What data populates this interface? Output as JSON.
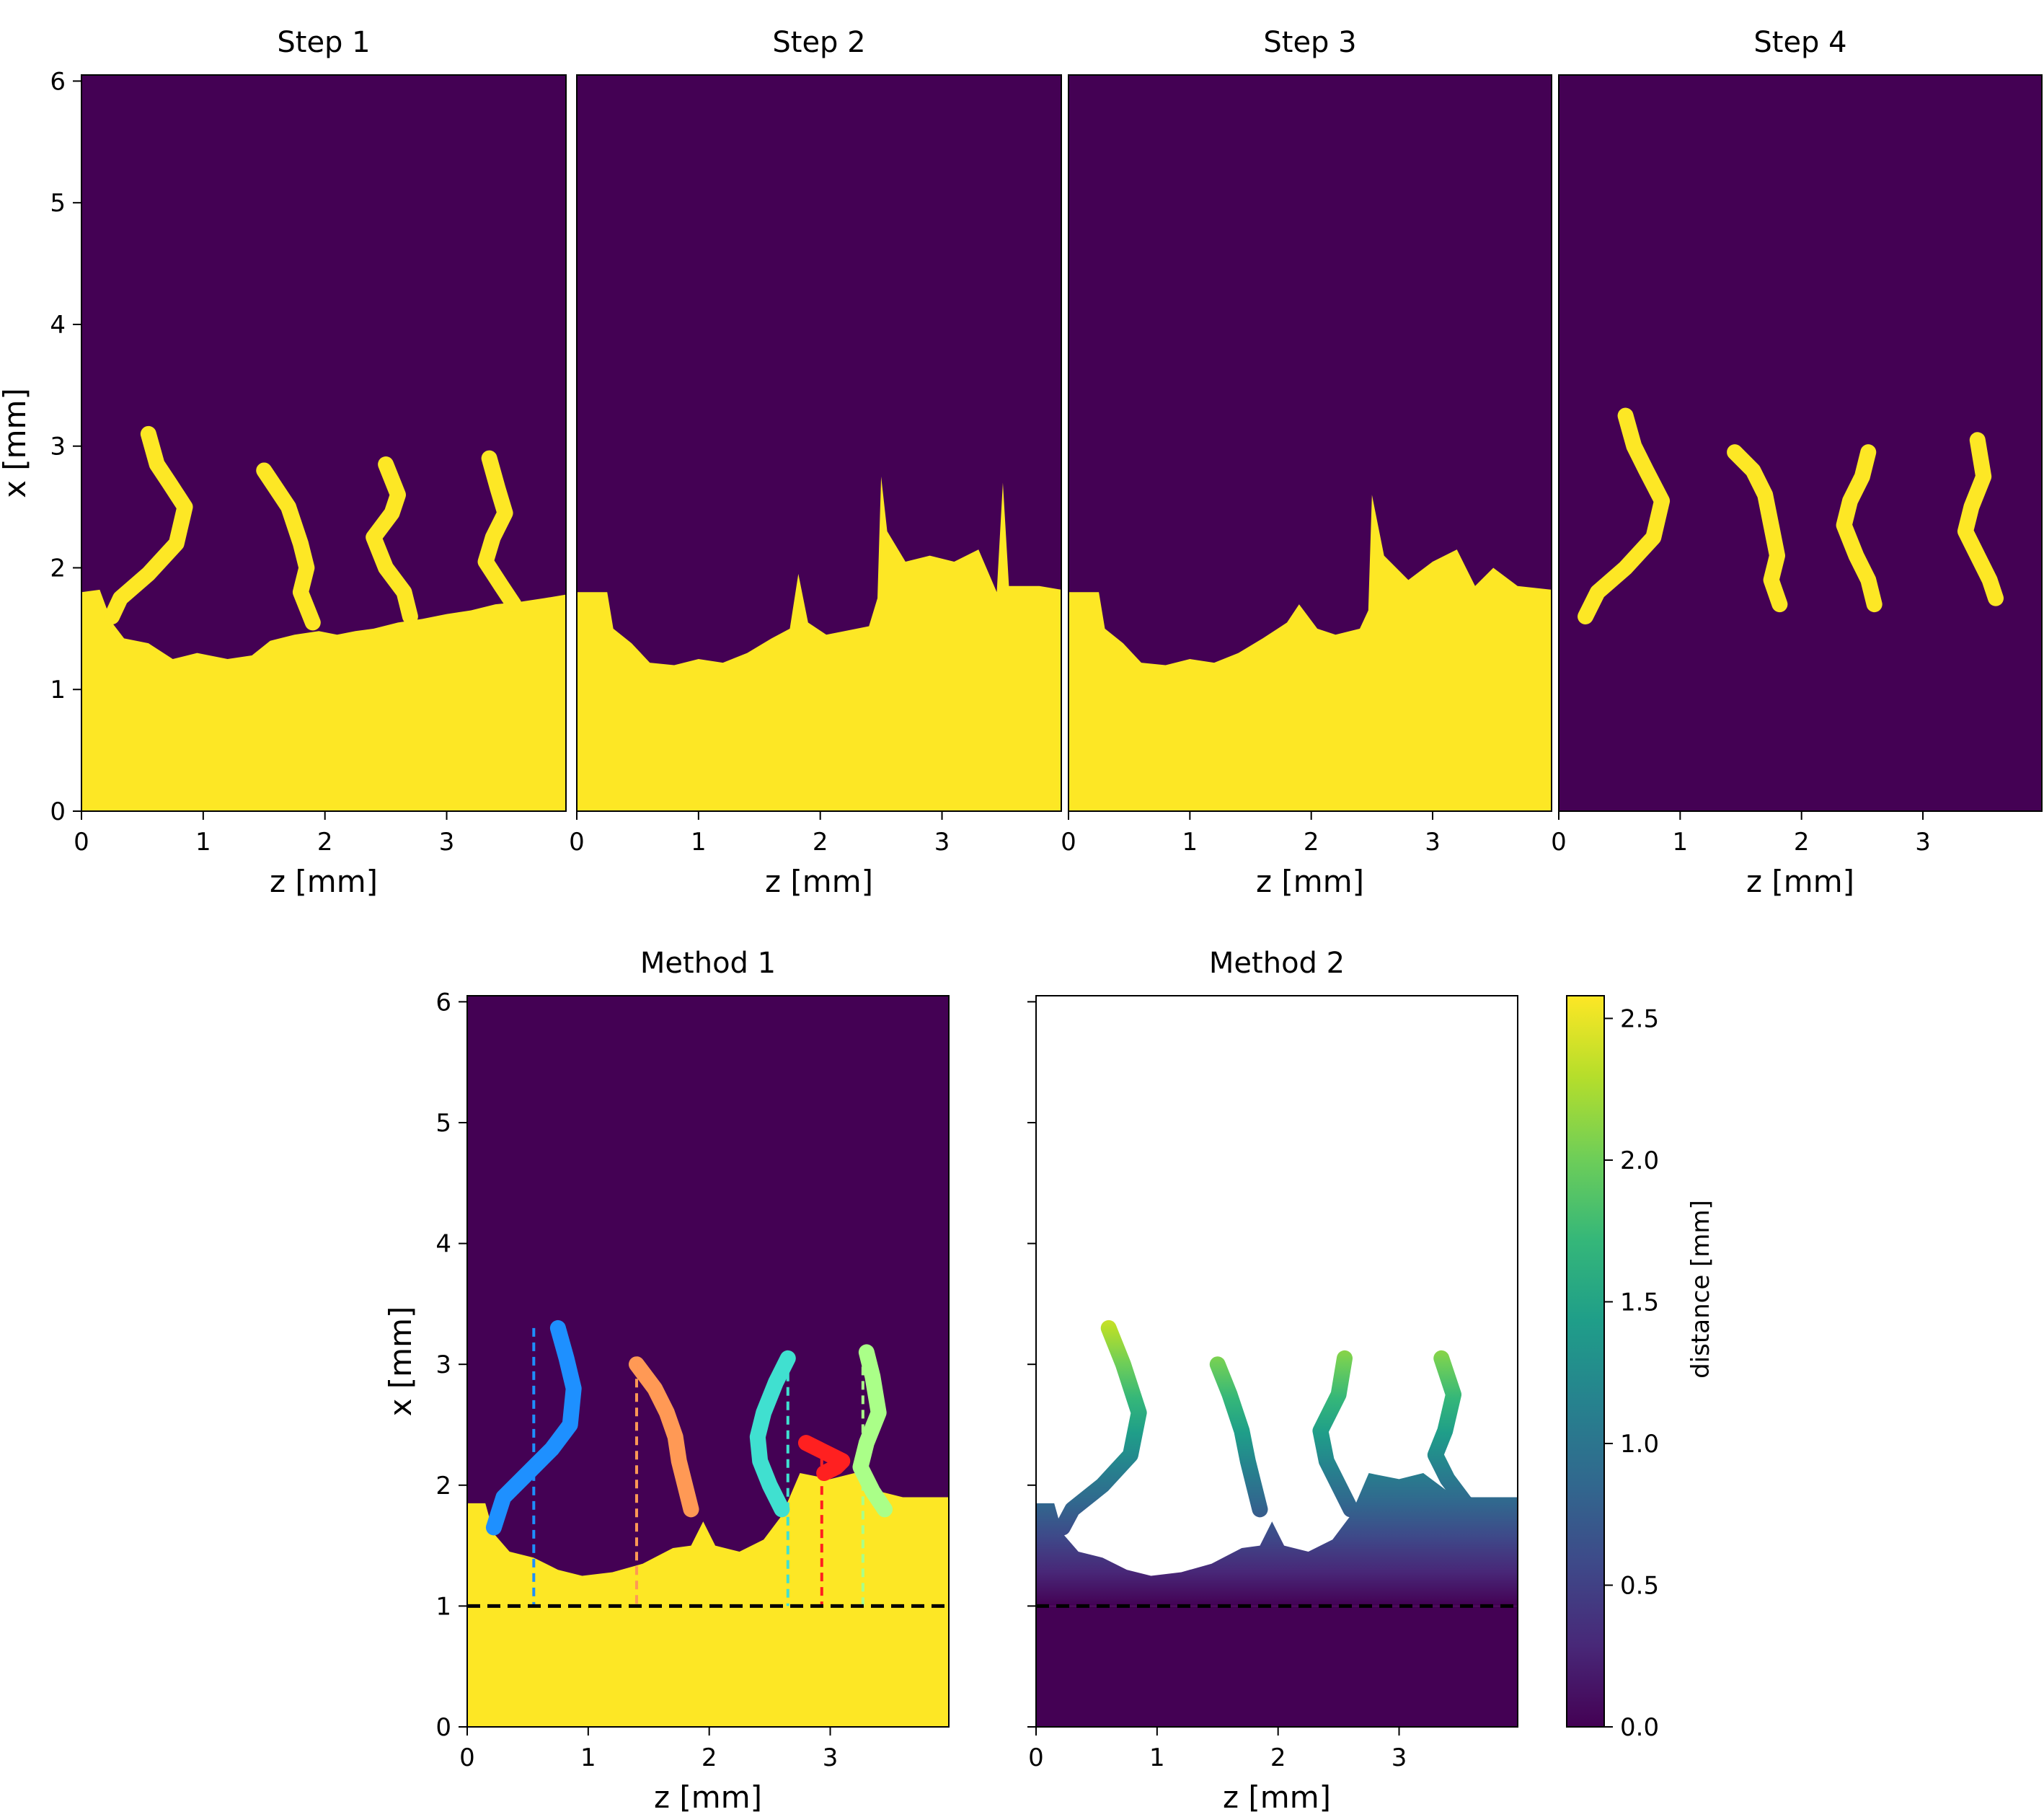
{
  "figure": {
    "colors": {
      "background": "#440154",
      "fill": "#fde725",
      "white": "#ffffff",
      "baseline": "#000000"
    },
    "colormap_viridis": [
      "#440154",
      "#482878",
      "#3e4989",
      "#31688e",
      "#26828e",
      "#1f9e89",
      "#35b779",
      "#6ece58",
      "#b5de2b",
      "#fde725"
    ]
  },
  "chart_data": [
    {
      "id": "step1",
      "type": "heatmap",
      "title": "Step 1",
      "xlabel": "z [mm]",
      "ylabel": "x [mm]",
      "xlim": [
        0,
        3.98
      ],
      "ylim": [
        0,
        6.05
      ],
      "xticks": [
        0,
        1,
        2,
        3
      ],
      "yticks": [
        0,
        1,
        2,
        3,
        4,
        5,
        6
      ],
      "description_values": "binary mask (0 = purple, 1 = yellow)",
      "surface": [
        [
          0,
          1.8
        ],
        [
          0.15,
          1.82
        ],
        [
          0.25,
          1.55
        ],
        [
          0.35,
          1.42
        ],
        [
          0.55,
          1.38
        ],
        [
          0.75,
          1.25
        ],
        [
          0.95,
          1.3
        ],
        [
          1.2,
          1.25
        ],
        [
          1.4,
          1.28
        ],
        [
          1.55,
          1.4
        ],
        [
          1.75,
          1.45
        ],
        [
          1.95,
          1.48
        ],
        [
          2.1,
          1.45
        ],
        [
          2.25,
          1.48
        ],
        [
          2.4,
          1.5
        ],
        [
          2.6,
          1.55
        ],
        [
          2.8,
          1.58
        ],
        [
          3.0,
          1.62
        ],
        [
          3.2,
          1.65
        ],
        [
          3.4,
          1.7
        ],
        [
          3.6,
          1.72
        ],
        [
          3.8,
          1.75
        ],
        [
          3.98,
          1.78
        ]
      ],
      "fingers": [
        {
          "z": [
            0.55,
            0.62,
            0.72,
            0.85,
            0.78,
            0.55,
            0.32,
            0.25
          ],
          "x": [
            3.1,
            2.85,
            2.7,
            2.5,
            2.2,
            1.95,
            1.75,
            1.6
          ]
        },
        {
          "z": [
            1.5,
            1.6,
            1.7,
            1.8,
            1.85,
            1.8,
            1.9
          ],
          "x": [
            2.8,
            2.65,
            2.5,
            2.2,
            2.0,
            1.8,
            1.55
          ]
        },
        {
          "z": [
            2.5,
            2.6,
            2.55,
            2.4,
            2.5,
            2.65,
            2.7
          ],
          "x": [
            2.85,
            2.6,
            2.45,
            2.25,
            2.0,
            1.8,
            1.6
          ]
        },
        {
          "z": [
            3.35,
            3.42,
            3.48,
            3.38,
            3.32,
            3.45,
            3.55
          ],
          "x": [
            2.9,
            2.65,
            2.45,
            2.25,
            2.05,
            1.85,
            1.7
          ]
        }
      ]
    },
    {
      "id": "step2",
      "type": "heatmap",
      "title": "Step 2",
      "xlabel": "z [mm]",
      "ylabel": "",
      "xlim": [
        0,
        3.98
      ],
      "ylim": [
        0,
        6.05
      ],
      "xticks": [
        0,
        1,
        2,
        3
      ],
      "yticks": [],
      "surface": [
        [
          0,
          1.8
        ],
        [
          0.25,
          1.8
        ],
        [
          0.3,
          1.5
        ],
        [
          0.45,
          1.38
        ],
        [
          0.6,
          1.22
        ],
        [
          0.8,
          1.2
        ],
        [
          1.0,
          1.25
        ],
        [
          1.2,
          1.22
        ],
        [
          1.4,
          1.3
        ],
        [
          1.6,
          1.42
        ],
        [
          1.75,
          1.5
        ],
        [
          1.82,
          1.95
        ],
        [
          1.9,
          1.55
        ],
        [
          2.05,
          1.45
        ],
        [
          2.2,
          1.48
        ],
        [
          2.4,
          1.52
        ],
        [
          2.47,
          1.75
        ],
        [
          2.5,
          2.75
        ],
        [
          2.55,
          2.3
        ],
        [
          2.7,
          2.05
        ],
        [
          2.9,
          2.1
        ],
        [
          3.1,
          2.05
        ],
        [
          3.3,
          2.15
        ],
        [
          3.45,
          1.8
        ],
        [
          3.5,
          2.7
        ],
        [
          3.55,
          1.85
        ],
        [
          3.8,
          1.85
        ],
        [
          3.98,
          1.82
        ]
      ]
    },
    {
      "id": "step3",
      "type": "heatmap",
      "title": "Step 3",
      "xlabel": "z [mm]",
      "ylabel": "",
      "xlim": [
        0,
        3.98
      ],
      "ylim": [
        0,
        6.05
      ],
      "xticks": [
        0,
        1,
        2,
        3
      ],
      "yticks": [],
      "surface": [
        [
          0,
          1.8
        ],
        [
          0.25,
          1.8
        ],
        [
          0.3,
          1.5
        ],
        [
          0.45,
          1.38
        ],
        [
          0.6,
          1.22
        ],
        [
          0.8,
          1.2
        ],
        [
          1.0,
          1.25
        ],
        [
          1.2,
          1.22
        ],
        [
          1.4,
          1.3
        ],
        [
          1.6,
          1.42
        ],
        [
          1.8,
          1.55
        ],
        [
          1.9,
          1.7
        ],
        [
          2.05,
          1.5
        ],
        [
          2.2,
          1.45
        ],
        [
          2.4,
          1.5
        ],
        [
          2.47,
          1.65
        ],
        [
          2.5,
          2.6
        ],
        [
          2.6,
          2.1
        ],
        [
          2.8,
          1.9
        ],
        [
          3.0,
          2.05
        ],
        [
          3.2,
          2.15
        ],
        [
          3.35,
          1.85
        ],
        [
          3.5,
          2.0
        ],
        [
          3.7,
          1.85
        ],
        [
          3.98,
          1.82
        ]
      ]
    },
    {
      "id": "step4",
      "type": "heatmap",
      "title": "Step 4",
      "xlabel": "z [mm]",
      "ylabel": "",
      "xlim": [
        0,
        3.98
      ],
      "ylim": [
        0,
        6.05
      ],
      "xticks": [
        0,
        1,
        2,
        3
      ],
      "yticks": [],
      "fingers": [
        {
          "z": [
            0.55,
            0.62,
            0.72,
            0.85,
            0.78,
            0.55,
            0.32,
            0.22
          ],
          "x": [
            3.25,
            3.0,
            2.8,
            2.55,
            2.25,
            2.0,
            1.8,
            1.6
          ]
        },
        {
          "z": [
            1.45,
            1.6,
            1.7,
            1.75,
            1.8,
            1.75,
            1.82
          ],
          "x": [
            2.95,
            2.8,
            2.6,
            2.35,
            2.1,
            1.9,
            1.7
          ]
        },
        {
          "z": [
            2.55,
            2.5,
            2.4,
            2.35,
            2.45,
            2.55,
            2.6
          ],
          "x": [
            2.95,
            2.75,
            2.55,
            2.35,
            2.1,
            1.9,
            1.7
          ]
        },
        {
          "z": [
            3.45,
            3.5,
            3.4,
            3.35,
            3.45,
            3.55,
            3.6
          ],
          "x": [
            3.05,
            2.75,
            2.5,
            2.3,
            2.1,
            1.9,
            1.75
          ]
        }
      ]
    },
    {
      "id": "method1",
      "type": "heatmap",
      "title": "Method 1",
      "xlabel": "z [mm]",
      "ylabel": "x [mm]",
      "xlim": [
        0,
        3.98
      ],
      "ylim": [
        0,
        6.05
      ],
      "xticks": [
        0,
        1,
        2,
        3
      ],
      "yticks": [
        0,
        1,
        2,
        3,
        4,
        5,
        6
      ],
      "baseline_x": 1.0,
      "surface": [
        [
          0,
          1.85
        ],
        [
          0.15,
          1.85
        ],
        [
          0.22,
          1.6
        ],
        [
          0.35,
          1.45
        ],
        [
          0.55,
          1.4
        ],
        [
          0.75,
          1.3
        ],
        [
          0.95,
          1.25
        ],
        [
          1.2,
          1.28
        ],
        [
          1.45,
          1.35
        ],
        [
          1.7,
          1.48
        ],
        [
          1.85,
          1.5
        ],
        [
          1.95,
          1.7
        ],
        [
          2.05,
          1.5
        ],
        [
          2.25,
          1.45
        ],
        [
          2.45,
          1.55
        ],
        [
          2.6,
          1.75
        ],
        [
          2.75,
          2.1
        ],
        [
          3.0,
          2.05
        ],
        [
          3.2,
          2.1
        ],
        [
          3.4,
          1.95
        ],
        [
          3.6,
          1.9
        ],
        [
          3.8,
          1.9
        ],
        [
          3.98,
          1.9
        ]
      ],
      "fingers": [
        {
          "color": "#1e90ff",
          "z_line": 0.55,
          "z": [
            0.75,
            0.82,
            0.88,
            0.85,
            0.7,
            0.5,
            0.3,
            0.22
          ],
          "x": [
            3.3,
            3.05,
            2.8,
            2.5,
            2.3,
            2.1,
            1.9,
            1.65
          ]
        },
        {
          "color": "#ff9955",
          "z_line": 1.4,
          "z": [
            1.4,
            1.55,
            1.65,
            1.72,
            1.75,
            1.8,
            1.85
          ],
          "x": [
            3.0,
            2.8,
            2.6,
            2.4,
            2.2,
            2.0,
            1.8
          ]
        },
        {
          "color": "#40e0d0",
          "z_line": 2.65,
          "z": [
            2.65,
            2.55,
            2.45,
            2.4,
            2.42,
            2.5,
            2.6
          ],
          "x": [
            3.05,
            2.85,
            2.6,
            2.4,
            2.2,
            2.0,
            1.8
          ]
        },
        {
          "color": "#ff2020",
          "z_line": 2.93,
          "z": [
            2.8,
            2.9,
            3.0,
            3.1,
            3.05,
            2.95
          ],
          "x": [
            2.35,
            2.3,
            2.25,
            2.2,
            2.15,
            2.1
          ]
        },
        {
          "color": "#aaff88",
          "z_line": 3.27,
          "z": [
            3.3,
            3.35,
            3.4,
            3.3,
            3.25,
            3.35,
            3.45
          ],
          "x": [
            3.1,
            2.9,
            2.6,
            2.35,
            2.15,
            1.95,
            1.8
          ]
        }
      ]
    },
    {
      "id": "method2",
      "type": "heatmap",
      "title": "Method 2",
      "xlabel": "z [mm]",
      "ylabel": "",
      "xlim": [
        0,
        3.98
      ],
      "ylim": [
        0,
        6.05
      ],
      "xticks": [
        0,
        1,
        2,
        3
      ],
      "yticks": [],
      "baseline_x": 1.0,
      "surface": [
        [
          0,
          1.85
        ],
        [
          0.15,
          1.85
        ],
        [
          0.22,
          1.6
        ],
        [
          0.35,
          1.45
        ],
        [
          0.55,
          1.4
        ],
        [
          0.75,
          1.3
        ],
        [
          0.95,
          1.25
        ],
        [
          1.2,
          1.28
        ],
        [
          1.45,
          1.35
        ],
        [
          1.7,
          1.48
        ],
        [
          1.85,
          1.5
        ],
        [
          1.95,
          1.7
        ],
        [
          2.05,
          1.5
        ],
        [
          2.25,
          1.45
        ],
        [
          2.45,
          1.55
        ],
        [
          2.6,
          1.75
        ],
        [
          2.75,
          2.1
        ],
        [
          3.0,
          2.05
        ],
        [
          3.2,
          2.1
        ],
        [
          3.4,
          1.95
        ],
        [
          3.6,
          1.9
        ],
        [
          3.8,
          1.9
        ],
        [
          3.98,
          1.9
        ]
      ],
      "fingers": [
        {
          "z": [
            0.6,
            0.72,
            0.85,
            0.78,
            0.55,
            0.3,
            0.22
          ],
          "x": [
            3.3,
            3.0,
            2.6,
            2.25,
            2.0,
            1.8,
            1.65
          ]
        },
        {
          "z": [
            1.5,
            1.6,
            1.7,
            1.75,
            1.8,
            1.85
          ],
          "x": [
            3.0,
            2.75,
            2.45,
            2.2,
            2.0,
            1.8
          ]
        },
        {
          "z": [
            2.55,
            2.5,
            2.35,
            2.4,
            2.5,
            2.6
          ],
          "x": [
            3.05,
            2.75,
            2.45,
            2.2,
            2.0,
            1.8
          ]
        },
        {
          "z": [
            3.35,
            3.45,
            3.38,
            3.3,
            3.4,
            3.55
          ],
          "x": [
            3.05,
            2.75,
            2.45,
            2.25,
            2.05,
            1.85
          ]
        }
      ],
      "colorbar": {
        "label": "distance [mm]",
        "range": [
          0,
          2.58
        ],
        "ticks": [
          0.0,
          0.5,
          1.0,
          1.5,
          2.0,
          2.5
        ],
        "tick_labels": [
          "0.0",
          "0.5",
          "1.0",
          "1.5",
          "2.0",
          "2.5"
        ]
      }
    }
  ]
}
